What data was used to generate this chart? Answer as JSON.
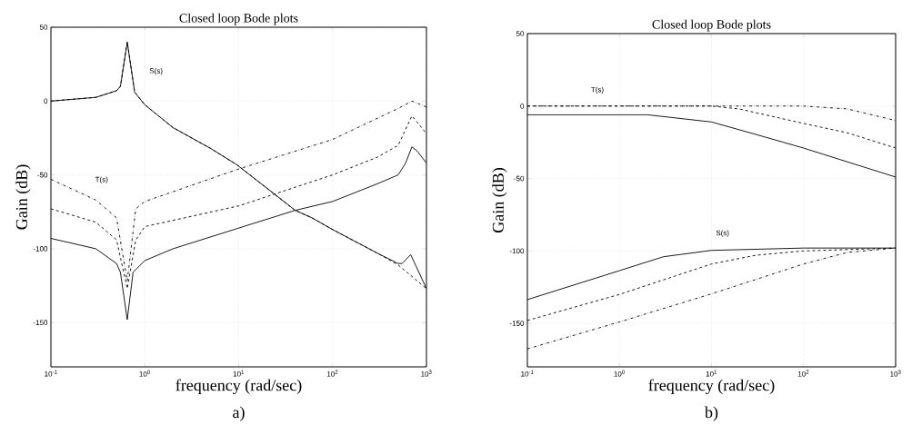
{
  "chart_data": [
    {
      "type": "line",
      "title": "Closed loop Bode plots",
      "xlabel": "frequency (rad/sec)",
      "ylabel": "Gain (dB)",
      "log": "x",
      "grid": true,
      "marker": "none",
      "xlim": [
        0.1,
        1000
      ],
      "ylim": [
        -180,
        50
      ],
      "xticks": [
        {
          "value": 0.1,
          "label": "10$^{-1}$"
        },
        {
          "value": 1,
          "label": "10$^{0}$"
        },
        {
          "value": 10,
          "label": "10$^{1}$"
        },
        {
          "value": 100,
          "label": "10$^{2}$"
        },
        {
          "value": 1000,
          "label": "10$^{3}$"
        }
      ],
      "yticks": [
        -150,
        -100,
        -50,
        0,
        50
      ],
      "series": [
        {
          "color": "#000000",
          "line_style": "solid",
          "x": [
            0.1,
            0.3,
            0.5,
            0.55,
            0.65,
            0.78,
            1,
            2,
            5,
            9.5,
            40,
            60,
            100,
            300,
            500,
            550,
            680,
            1000
          ],
          "values": [
            0,
            2.5,
            7,
            10,
            40,
            6,
            -2.5,
            -18,
            -32,
            -43,
            -74,
            -79,
            -87,
            -103,
            -110,
            -110,
            -104,
            -127
          ]
        },
        {
          "color": "#000000",
          "line_style": "dashed",
          "x": [
            0.1,
            0.3,
            0.5,
            0.55,
            0.65,
            0.78,
            1,
            2,
            5,
            9.5,
            40,
            60,
            100,
            300,
            500,
            1000
          ],
          "values": [
            0,
            2.5,
            7,
            10,
            40,
            6,
            -2.5,
            -18,
            -32,
            -43,
            -74,
            -79,
            -87,
            -103,
            -111,
            -127
          ]
        },
        {
          "color": "#000000",
          "line_style": "solid",
          "x": [
            0.1,
            0.3,
            0.5,
            0.55,
            0.65,
            0.75,
            1,
            2,
            10,
            40,
            100,
            300,
            500,
            600,
            700,
            800,
            1000
          ],
          "values": [
            -93,
            -100,
            -110,
            -116,
            -148,
            -116,
            -108,
            -100,
            -86,
            -74,
            -68,
            -56,
            -50,
            -42,
            -31,
            -34,
            -42
          ]
        },
        {
          "color": "#000000",
          "line_style": "dashed",
          "x": [
            0.1,
            0.3,
            0.5,
            0.65,
            0.8,
            1,
            10,
            100,
            300,
            500,
            700,
            1000
          ],
          "values": [
            -73,
            -82,
            -94,
            -127,
            -94,
            -85,
            -71,
            -50,
            -38,
            -30,
            -10,
            -22
          ]
        },
        {
          "color": "#000000",
          "line_style": "dashdot",
          "x": [
            0.1,
            0.3,
            0.5,
            0.65,
            0.8,
            1,
            10,
            100,
            500,
            700,
            1000
          ],
          "values": [
            -53,
            -67,
            -79,
            -122,
            -73,
            -68,
            -46,
            -26,
            -5,
            0,
            -4
          ]
        }
      ],
      "annotations": [
        "S(s)",
        "T(s)",
        "a)"
      ]
    },
    {
      "type": "line",
      "title": "Closed loop Bode plots",
      "xlabel": "frequency (rad/sec)",
      "ylabel": "Gain (dB)",
      "log": "x",
      "grid": true,
      "marker": "none",
      "xlim": [
        0.1,
        1000
      ],
      "ylim": [
        -180,
        50
      ],
      "xticks": [
        {
          "value": 0.1,
          "label": "10$^{-1}$"
        },
        {
          "value": 1,
          "label": "10$^{0}$"
        },
        {
          "value": 10,
          "label": "10$^{1}$"
        },
        {
          "value": 100,
          "label": "10$^{2}$"
        },
        {
          "value": 1000,
          "label": "10$^{3}$"
        }
      ],
      "yticks": [
        -150,
        -100,
        -50,
        0,
        50
      ],
      "series": [
        {
          "color": "#000000",
          "line_style": "solid",
          "x": [
            0.1,
            2,
            10,
            30,
            100,
            1000
          ],
          "values": [
            -6,
            -6,
            -11,
            -19.5,
            -29,
            -49
          ]
        },
        {
          "color": "#000000",
          "line_style": "dashed",
          "x": [
            0.1,
            10,
            20,
            100,
            300,
            1000
          ],
          "values": [
            0,
            0,
            -2,
            -12,
            -18.5,
            -29
          ]
        },
        {
          "color": "#000000",
          "line_style": "dashdot",
          "x": [
            0.1,
            100,
            300,
            1000
          ],
          "values": [
            0,
            0,
            -2,
            -10
          ]
        },
        {
          "color": "#000000",
          "line_style": "solid",
          "x": [
            0.1,
            1,
            3,
            10,
            100,
            1000
          ],
          "values": [
            -133.6,
            -113.6,
            -104,
            -99.6,
            -98,
            -98
          ]
        },
        {
          "color": "#000000",
          "line_style": "dashed",
          "x": [
            0.1,
            1,
            10,
            30,
            100,
            1000
          ],
          "values": [
            -148,
            -130,
            -109,
            -103,
            -100,
            -98
          ]
        },
        {
          "color": "#000000",
          "line_style": "dashdot",
          "x": [
            0.1,
            1,
            10,
            100,
            300,
            1000
          ],
          "values": [
            -167.6,
            -149,
            -129.6,
            -109,
            -101,
            -98
          ]
        }
      ],
      "annotations": [
        "T(s)",
        "S(s)",
        "b)"
      ]
    }
  ]
}
